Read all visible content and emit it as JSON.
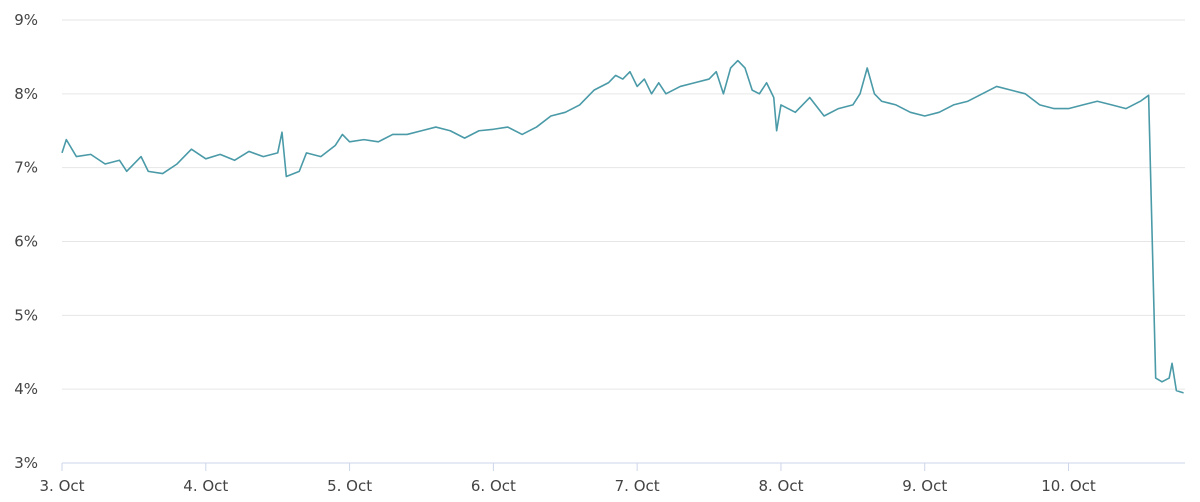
{
  "chart_data": {
    "type": "line",
    "color": "#4a9aa8",
    "grid": true,
    "xlim": [
      3,
      10.81
    ],
    "xticks": [
      {
        "value": 3,
        "label": "3. Oct"
      },
      {
        "value": 4,
        "label": "4. Oct"
      },
      {
        "value": 5,
        "label": "5. Oct"
      },
      {
        "value": 6,
        "label": "6. Oct"
      },
      {
        "value": 7,
        "label": "7. Oct"
      },
      {
        "value": 8,
        "label": "8. Oct"
      },
      {
        "value": 9,
        "label": "9. Oct"
      },
      {
        "value": 10,
        "label": "10. Oct"
      }
    ],
    "ylim": [
      3,
      9
    ],
    "yticks": [
      {
        "value": 3,
        "label": "3%"
      },
      {
        "value": 4,
        "label": "4%"
      },
      {
        "value": 5,
        "label": "5%"
      },
      {
        "value": 6,
        "label": "6%"
      },
      {
        "value": 7,
        "label": "7%"
      },
      {
        "value": 8,
        "label": "8%"
      },
      {
        "value": 9,
        "label": "9%"
      }
    ],
    "x": [
      3.0,
      3.03,
      3.1,
      3.2,
      3.3,
      3.4,
      3.45,
      3.55,
      3.6,
      3.7,
      3.8,
      3.9,
      4.0,
      4.1,
      4.2,
      4.3,
      4.4,
      4.5,
      4.53,
      4.56,
      4.65,
      4.7,
      4.8,
      4.9,
      4.95,
      5.0,
      5.1,
      5.2,
      5.3,
      5.4,
      5.5,
      5.6,
      5.7,
      5.8,
      5.9,
      6.0,
      6.1,
      6.2,
      6.3,
      6.4,
      6.5,
      6.6,
      6.7,
      6.8,
      6.85,
      6.9,
      6.95,
      7.0,
      7.05,
      7.1,
      7.15,
      7.2,
      7.3,
      7.4,
      7.5,
      7.55,
      7.6,
      7.65,
      7.7,
      7.75,
      7.8,
      7.85,
      7.9,
      7.95,
      7.97,
      8.0,
      8.1,
      8.2,
      8.3,
      8.4,
      8.5,
      8.55,
      8.6,
      8.65,
      8.7,
      8.8,
      8.9,
      9.0,
      9.1,
      9.2,
      9.3,
      9.4,
      9.5,
      9.6,
      9.7,
      9.8,
      9.9,
      10.0,
      10.1,
      10.2,
      10.3,
      10.4,
      10.5,
      10.557,
      10.606,
      10.65,
      10.7,
      10.72,
      10.75,
      10.8
    ],
    "values": [
      7.2,
      7.38,
      7.15,
      7.18,
      7.05,
      7.1,
      6.95,
      7.15,
      6.95,
      6.92,
      7.05,
      7.25,
      7.12,
      7.18,
      7.1,
      7.22,
      7.15,
      7.2,
      7.48,
      6.88,
      6.95,
      7.2,
      7.15,
      7.3,
      7.45,
      7.35,
      7.38,
      7.35,
      7.45,
      7.45,
      7.5,
      7.55,
      7.5,
      7.4,
      7.5,
      7.52,
      7.55,
      7.45,
      7.55,
      7.7,
      7.75,
      7.85,
      8.05,
      8.15,
      8.25,
      8.2,
      8.3,
      8.1,
      8.2,
      8.0,
      8.15,
      8.0,
      8.1,
      8.15,
      8.2,
      8.3,
      8.0,
      8.35,
      8.45,
      8.35,
      8.05,
      8.0,
      8.15,
      7.95,
      7.5,
      7.85,
      7.75,
      7.95,
      7.7,
      7.8,
      7.85,
      8.0,
      8.35,
      8.0,
      7.9,
      7.85,
      7.75,
      7.7,
      7.75,
      7.85,
      7.9,
      8.0,
      8.1,
      8.05,
      8.0,
      7.85,
      7.8,
      7.8,
      7.85,
      7.9,
      7.85,
      7.8,
      7.9,
      7.98,
      4.15,
      4.1,
      4.15,
      4.35,
      3.98,
      3.95
    ]
  }
}
